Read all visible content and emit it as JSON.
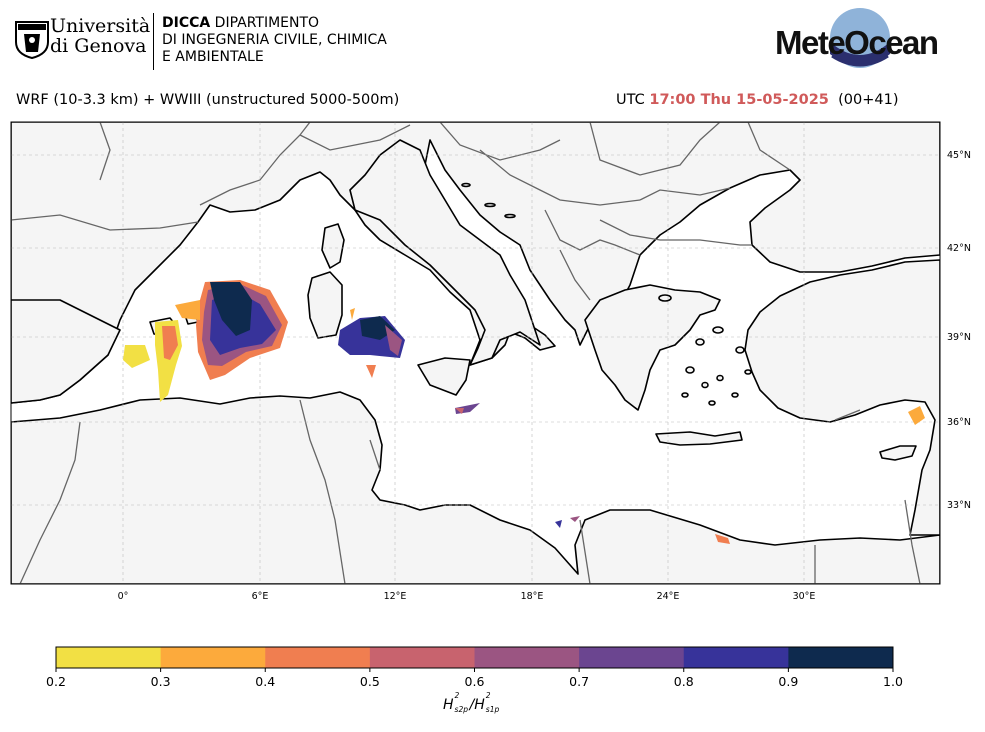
{
  "header": {
    "unige": {
      "line1": "Università",
      "line2": "di Genova"
    },
    "dicca": {
      "bold": "DICCA",
      "line1_rest": " DIPARTIMENTO",
      "line2": "DI INGEGNERIA CIVILE, CHIMICA",
      "line3": "E AMBIENTALE"
    },
    "meteocean_logo_text": "MeteOcean",
    "model_title": "WRF (10-3.3 km) + WWIII (unstructured 5000-500m)",
    "time_prefix": "UTC",
    "time_value": "17:00 Thu 15-05-2025",
    "lead_time": "(00+41)"
  },
  "map": {
    "lon_ticks": [
      "0°",
      "6°E",
      "12°E",
      "18°E",
      "24°E",
      "30°E"
    ],
    "lat_ticks": [
      "45°N",
      "42°N",
      "39°N",
      "36°N",
      "33°N"
    ],
    "land_color": "#f5f5f5",
    "sea_color": "#ffffff",
    "coast_color": "#000000",
    "border_color": "#666666",
    "grid_color": "#bbbbbb"
  },
  "colorbar": {
    "levels": [
      "0.2",
      "0.3",
      "0.4",
      "0.5",
      "0.6",
      "0.7",
      "0.8",
      "0.9",
      "1.0"
    ],
    "colors": [
      "#f2e044",
      "#fcaa3c",
      "#f07e50",
      "#c8636e",
      "#9b5582",
      "#6b4590",
      "#37339a",
      "#0e2a4e"
    ],
    "label_main": "H",
    "label_sup": "2",
    "label_sub1": "s2p",
    "label_sub2": "s1p"
  }
}
